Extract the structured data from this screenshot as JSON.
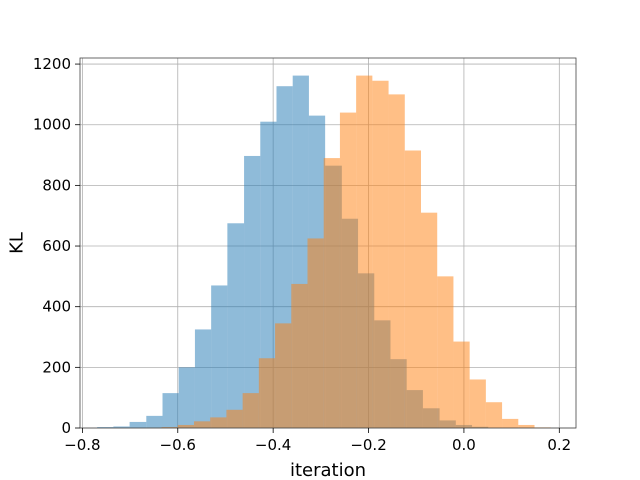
{
  "chart_data": {
    "type": "histogram",
    "title": "",
    "xlabel": "iteration",
    "ylabel": "KL",
    "xlim": [
      -0.805,
      0.235
    ],
    "ylim": [
      0,
      1220
    ],
    "xticks": [
      -0.8,
      -0.6,
      -0.4,
      -0.2,
      0.0,
      0.2
    ],
    "xtick_labels": [
      "−0.8",
      "−0.6",
      "−0.4",
      "−0.2",
      "0.0",
      "0.2"
    ],
    "yticks": [
      0,
      200,
      400,
      600,
      800,
      1000,
      1200
    ],
    "ytick_labels": [
      "0",
      "200",
      "400",
      "600",
      "800",
      "1000",
      "1200"
    ],
    "grid": true,
    "legend": "none",
    "series": [
      {
        "color": "#1f77b4",
        "alpha": 0.5,
        "bins": [
          {
            "x0": -0.769,
            "x1": -0.735,
            "count": 3
          },
          {
            "x0": -0.735,
            "x1": -0.701,
            "count": 5
          },
          {
            "x0": -0.701,
            "x1": -0.666,
            "count": 20
          },
          {
            "x0": -0.666,
            "x1": -0.632,
            "count": 40
          },
          {
            "x0": -0.632,
            "x1": -0.598,
            "count": 115
          },
          {
            "x0": -0.598,
            "x1": -0.564,
            "count": 200
          },
          {
            "x0": -0.564,
            "x1": -0.53,
            "count": 325
          },
          {
            "x0": -0.53,
            "x1": -0.496,
            "count": 470
          },
          {
            "x0": -0.496,
            "x1": -0.461,
            "count": 675
          },
          {
            "x0": -0.461,
            "x1": -0.427,
            "count": 897
          },
          {
            "x0": -0.427,
            "x1": -0.393,
            "count": 1010
          },
          {
            "x0": -0.393,
            "x1": -0.359,
            "count": 1127
          },
          {
            "x0": -0.359,
            "x1": -0.325,
            "count": 1162
          },
          {
            "x0": -0.325,
            "x1": -0.291,
            "count": 1030
          },
          {
            "x0": -0.291,
            "x1": -0.256,
            "count": 865
          },
          {
            "x0": -0.256,
            "x1": -0.222,
            "count": 690
          },
          {
            "x0": -0.222,
            "x1": -0.188,
            "count": 510
          },
          {
            "x0": -0.188,
            "x1": -0.154,
            "count": 355
          },
          {
            "x0": -0.154,
            "x1": -0.12,
            "count": 227
          },
          {
            "x0": -0.12,
            "x1": -0.086,
            "count": 125
          },
          {
            "x0": -0.086,
            "x1": -0.051,
            "count": 65
          },
          {
            "x0": -0.051,
            "x1": -0.017,
            "count": 25
          },
          {
            "x0": -0.017,
            "x1": 0.017,
            "count": 10
          },
          {
            "x0": 0.017,
            "x1": 0.051,
            "count": 4
          }
        ]
      },
      {
        "color": "#ff7f0e",
        "alpha": 0.5,
        "bins": [
          {
            "x0": -0.668,
            "x1": -0.634,
            "count": 1
          },
          {
            "x0": -0.634,
            "x1": -0.6,
            "count": 3
          },
          {
            "x0": -0.6,
            "x1": -0.566,
            "count": 10
          },
          {
            "x0": -0.566,
            "x1": -0.532,
            "count": 22
          },
          {
            "x0": -0.532,
            "x1": -0.498,
            "count": 35
          },
          {
            "x0": -0.498,
            "x1": -0.464,
            "count": 60
          },
          {
            "x0": -0.464,
            "x1": -0.43,
            "count": 115
          },
          {
            "x0": -0.43,
            "x1": -0.396,
            "count": 230
          },
          {
            "x0": -0.396,
            "x1": -0.362,
            "count": 345
          },
          {
            "x0": -0.362,
            "x1": -0.328,
            "count": 475
          },
          {
            "x0": -0.328,
            "x1": -0.294,
            "count": 625
          },
          {
            "x0": -0.294,
            "x1": -0.26,
            "count": 890
          },
          {
            "x0": -0.26,
            "x1": -0.226,
            "count": 1040
          },
          {
            "x0": -0.226,
            "x1": -0.192,
            "count": 1162
          },
          {
            "x0": -0.192,
            "x1": -0.158,
            "count": 1145
          },
          {
            "x0": -0.158,
            "x1": -0.124,
            "count": 1100
          },
          {
            "x0": -0.124,
            "x1": -0.09,
            "count": 915
          },
          {
            "x0": -0.09,
            "x1": -0.056,
            "count": 710
          },
          {
            "x0": -0.056,
            "x1": -0.022,
            "count": 500
          },
          {
            "x0": -0.022,
            "x1": 0.012,
            "count": 285
          },
          {
            "x0": 0.012,
            "x1": 0.046,
            "count": 160
          },
          {
            "x0": 0.046,
            "x1": 0.08,
            "count": 85
          },
          {
            "x0": 0.08,
            "x1": 0.114,
            "count": 30
          },
          {
            "x0": 0.114,
            "x1": 0.148,
            "count": 10
          },
          {
            "x0": 0.148,
            "x1": 0.182,
            "count": 2
          }
        ]
      }
    ]
  }
}
